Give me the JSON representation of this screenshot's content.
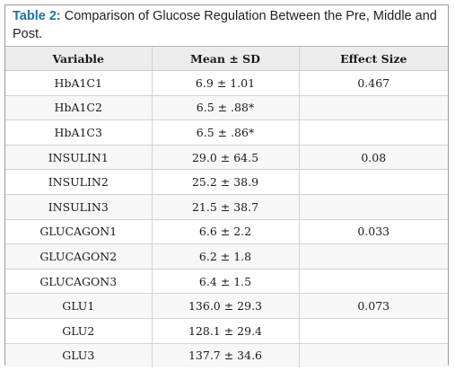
{
  "caption": {
    "label": "Table 2:",
    "text": " Comparison of Glucose Regulation Between the Pre, Middle and Post."
  },
  "table": {
    "headers": [
      "Variable",
      "Mean ± SD",
      "Effect Size"
    ],
    "rows": [
      [
        "HbA1C1",
        "6.9 ± 1.01",
        "0.467"
      ],
      [
        "HbA1C2",
        "6.5 ± .88*",
        ""
      ],
      [
        "HbA1C3",
        "6.5 ± .86*",
        ""
      ],
      [
        "INSULIN1",
        "29.0 ± 64.5",
        "0.08"
      ],
      [
        "INSULIN2",
        "25.2 ± 38.9",
        ""
      ],
      [
        "INSULIN3",
        "21.5 ± 38.7",
        ""
      ],
      [
        "GLUCAGON1",
        "6.6 ± 2.2",
        "0.033"
      ],
      [
        "GLUCAGON2",
        "6.2 ± 1.8",
        ""
      ],
      [
        "GLUCAGON3",
        "6.4 ± 1.5",
        ""
      ],
      [
        "GLU1",
        "136.0 ± 29.3",
        "0.073"
      ],
      [
        "GLU2",
        "128.1 ± 29.4",
        ""
      ],
      [
        "GLU3",
        "137.7 ± 34.6",
        ""
      ]
    ]
  }
}
